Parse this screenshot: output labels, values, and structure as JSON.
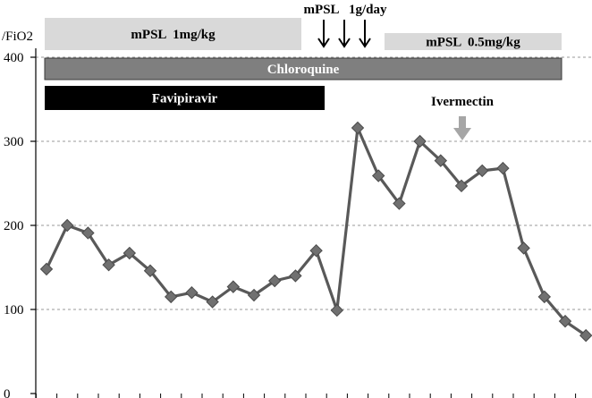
{
  "chart_data": {
    "type": "line",
    "ylabel": "/FiO2",
    "ylim": [
      0,
      400
    ],
    "yticks": [
      0,
      100,
      200,
      300,
      400
    ],
    "y_tick_labels": [
      "0",
      "100",
      "200",
      "300",
      "400"
    ],
    "grid": "horizontal dashed",
    "series": [
      {
        "color": "#555555",
        "marker": "diamond",
        "values": [
          148,
          200,
          191,
          153,
          167,
          146,
          115,
          120,
          109,
          127,
          117,
          134,
          140,
          170,
          99,
          316,
          259,
          226,
          300,
          277,
          247,
          265,
          268,
          173,
          115,
          86,
          69
        ]
      }
    ],
    "treatments": [
      {
        "label": "mPSL  1mg/kg",
        "start": 0,
        "end": 14,
        "style": "light-gray"
      },
      {
        "label": "mPSL  0.5mg/kg",
        "start": 17.5,
        "end": 25.5,
        "style": "light-gray"
      },
      {
        "label": "Chloroquine",
        "start": 0,
        "end": 25.5,
        "style": "dark-gray"
      },
      {
        "label": "Favipiravir",
        "start": 0,
        "end": 14,
        "style": "black"
      }
    ],
    "annotations": [
      {
        "label": "mPSL   1g/day",
        "markers": "down-arrows",
        "at": [
          14,
          15,
          16
        ]
      },
      {
        "label": "Ivermectin",
        "markers": "gray-down-arrow",
        "at": [
          21
        ]
      }
    ]
  }
}
